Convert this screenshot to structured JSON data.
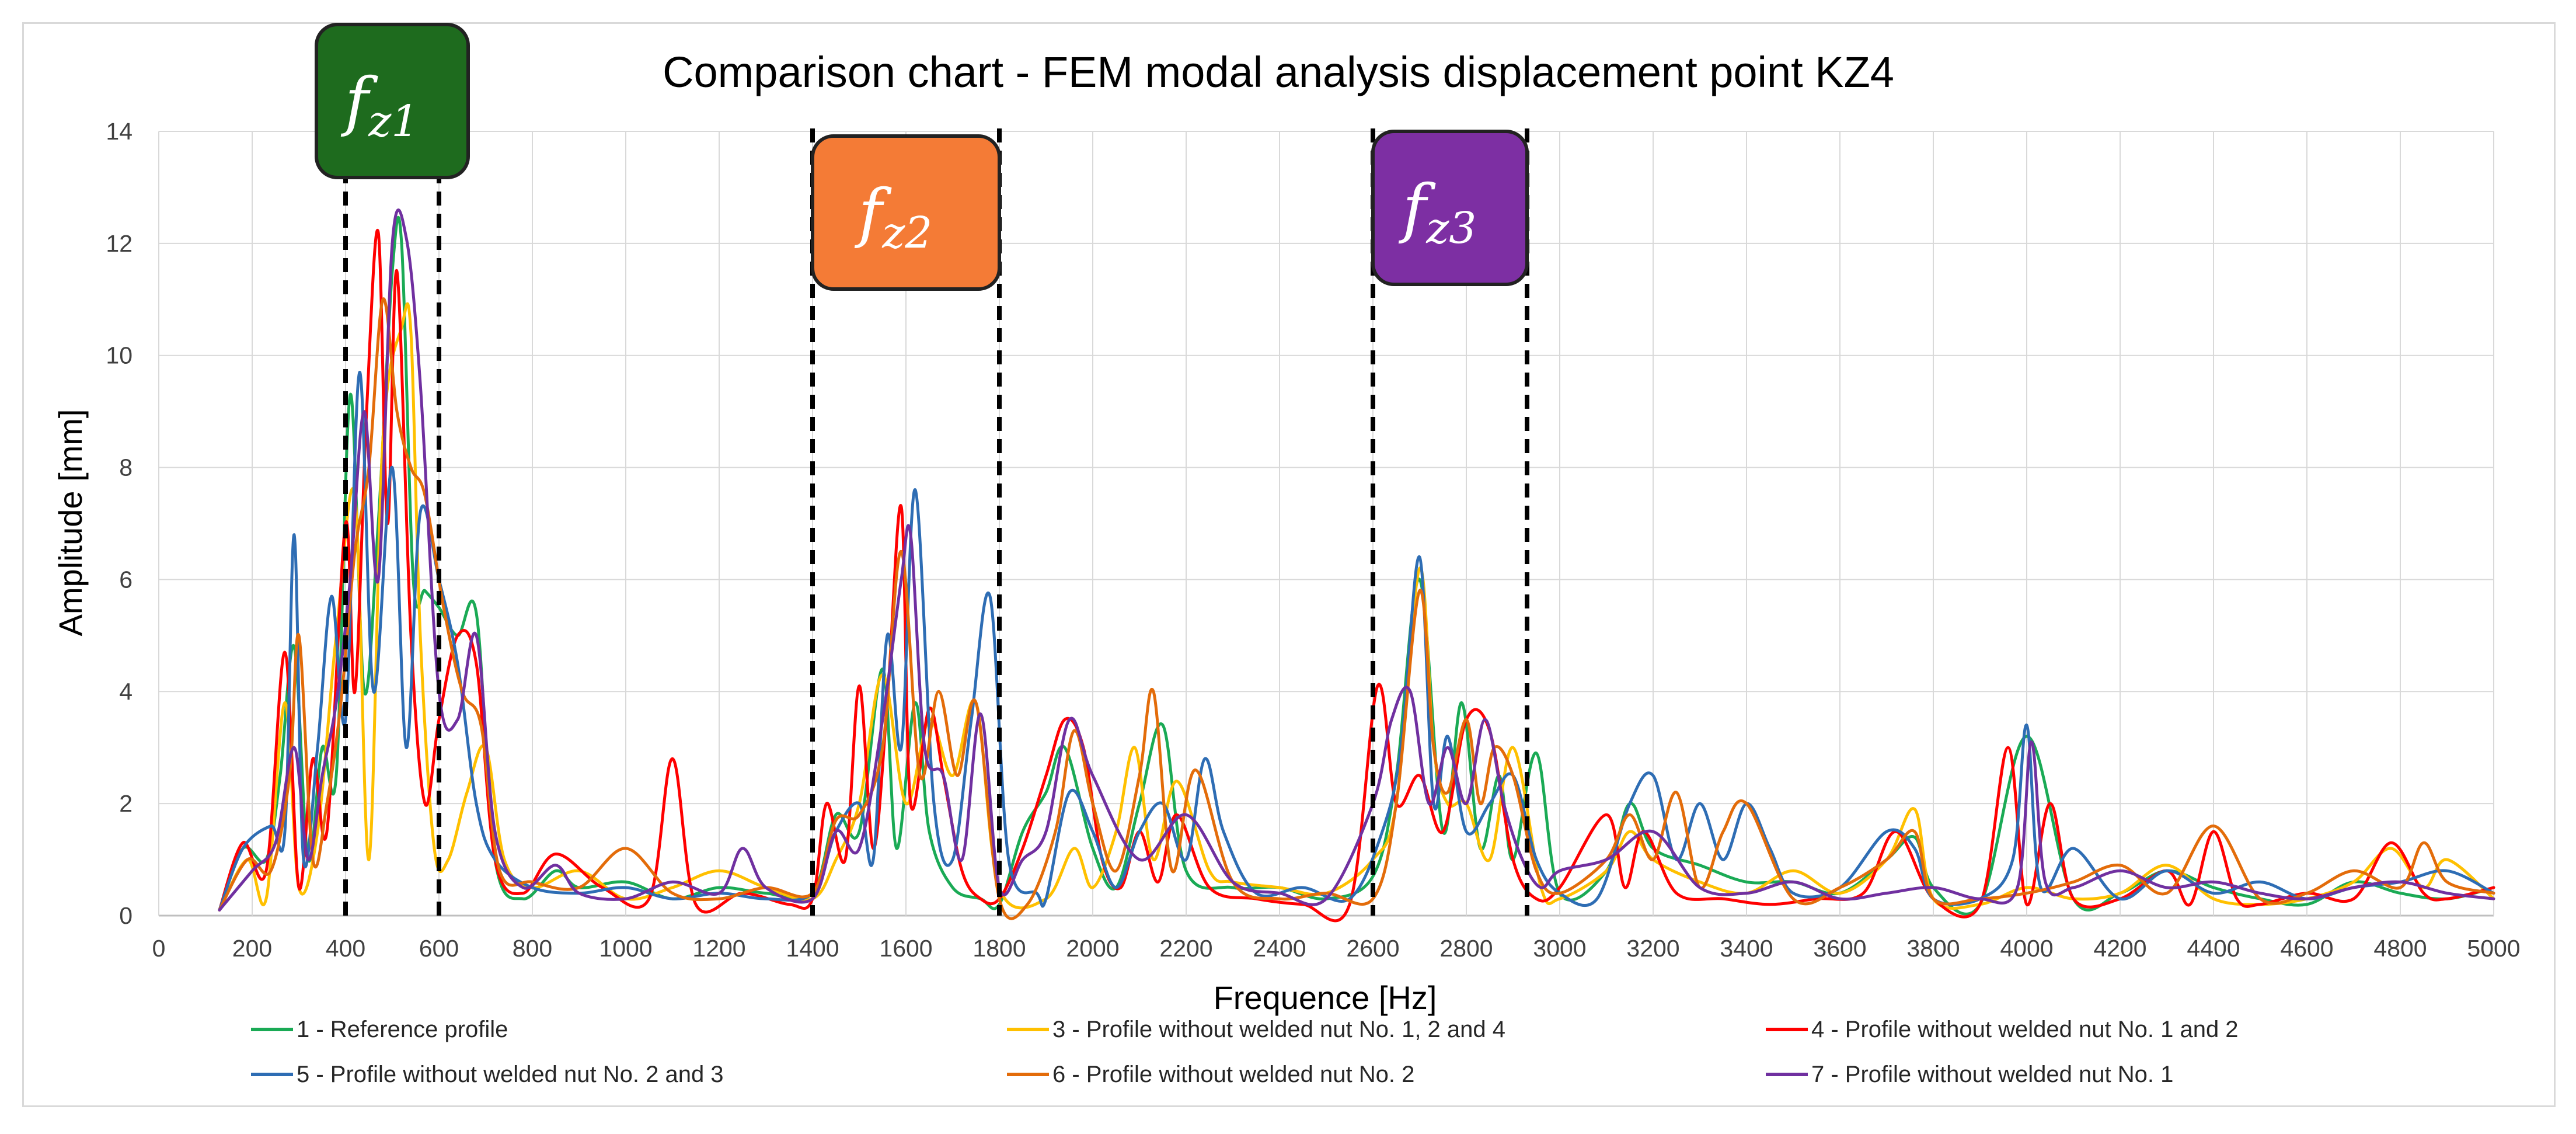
{
  "chart_data": {
    "type": "line",
    "title": "Comparison chart - FEM modal analysis displacement point KZ4",
    "xlabel": "Frequence [Hz]",
    "ylabel": "Amplitude [mm]",
    "xlim": [
      0,
      5000
    ],
    "ylim": [
      0,
      14
    ],
    "xticks": [
      0,
      200,
      400,
      600,
      800,
      1000,
      1200,
      1400,
      1600,
      1800,
      2000,
      2200,
      2400,
      2600,
      2800,
      3000,
      3200,
      3400,
      3600,
      3800,
      4000,
      4200,
      4400,
      4600,
      4800,
      5000
    ],
    "yticks": [
      0,
      2,
      4,
      6,
      8,
      10,
      12,
      14
    ],
    "grid": true,
    "legend_position": "bottom",
    "frequency_bands": [
      {
        "label": "f",
        "subscript": "z1",
        "from": 400,
        "to": 600,
        "color": "#1e6b1e"
      },
      {
        "label": "f",
        "subscript": "z2",
        "from": 1400,
        "to": 1800,
        "color": "#f47b36"
      },
      {
        "label": "f",
        "subscript": "z3",
        "from": 2600,
        "to": 2930,
        "color": "#7d2fa3"
      }
    ],
    "series": [
      {
        "name": "1 - Reference profile",
        "color": "#1aaa55",
        "x": [
          130,
          180,
          230,
          260,
          290,
          320,
          350,
          380,
          410,
          440,
          470,
          500,
          520,
          545,
          570,
          600,
          640,
          680,
          720,
          780,
          850,
          900,
          1000,
          1100,
          1200,
          1300,
          1400,
          1450,
          1500,
          1550,
          1580,
          1620,
          1650,
          1700,
          1760,
          1800,
          1850,
          1900,
          1940,
          2000,
          2050,
          2100,
          2150,
          2200,
          2300,
          2400,
          2500,
          2600,
          2650,
          2700,
          2750,
          2790,
          2830,
          2870,
          2900,
          2950,
          3000,
          3100,
          3150,
          3200,
          3300,
          3400,
          3500,
          3600,
          3700,
          3760,
          3800,
          3900,
          4000,
          4100,
          4200,
          4300,
          4400,
          4500,
          4600,
          4700,
          4800,
          4900,
          5000
        ],
        "y": [
          0.1,
          1.2,
          1.0,
          2.5,
          4.8,
          1.0,
          3.0,
          2.5,
          9.3,
          4.0,
          7.0,
          11.5,
          12.0,
          6.0,
          5.8,
          5.5,
          5.0,
          5.4,
          1.0,
          0.3,
          0.8,
          0.5,
          0.6,
          0.3,
          0.5,
          0.4,
          0.4,
          1.8,
          1.5,
          4.4,
          1.2,
          3.8,
          1.5,
          0.5,
          0.3,
          0.2,
          1.5,
          2.2,
          3.0,
          1.2,
          0.5,
          2.0,
          3.4,
          0.8,
          0.5,
          0.5,
          0.3,
          0.7,
          2.5,
          6.0,
          1.5,
          3.8,
          1.2,
          2.5,
          1.0,
          2.9,
          0.4,
          0.8,
          2.0,
          1.2,
          0.9,
          0.6,
          0.6,
          0.4,
          1.0,
          1.4,
          0.5,
          0.2,
          3.2,
          0.3,
          0.4,
          0.8,
          0.5,
          0.3,
          0.2,
          0.6,
          0.4,
          0.3,
          0.5
        ]
      },
      {
        "name": "3 - Profile without welded nut No. 1, 2 and 4",
        "color": "#ffc000",
        "x": [
          130,
          190,
          230,
          270,
          300,
          340,
          380,
          420,
          450,
          480,
          520,
          540,
          560,
          590,
          620,
          660,
          700,
          740,
          800,
          900,
          1000,
          1100,
          1200,
          1300,
          1400,
          1450,
          1500,
          1550,
          1600,
          1650,
          1700,
          1750,
          1800,
          1900,
          1960,
          2000,
          2050,
          2090,
          2130,
          2180,
          2250,
          2300,
          2400,
          2500,
          2600,
          2650,
          2700,
          2730,
          2760,
          2800,
          2850,
          2900,
          2960,
          3000,
          3100,
          3150,
          3200,
          3300,
          3400,
          3500,
          3600,
          3700,
          3760,
          3800,
          3900,
          4000,
          4100,
          4200,
          4300,
          4400,
          4500,
          4600,
          4700,
          4780,
          4850,
          4900,
          5000
        ],
        "y": [
          0.1,
          1.0,
          0.3,
          3.8,
          0.5,
          1.5,
          5.0,
          7.5,
          1.0,
          8.5,
          10.5,
          10.4,
          5.0,
          1.2,
          1.0,
          2.2,
          3.0,
          1.0,
          0.5,
          0.8,
          0.3,
          0.5,
          0.8,
          0.5,
          0.3,
          1.0,
          2.0,
          4.3,
          2.0,
          3.5,
          2.5,
          3.8,
          0.5,
          0.3,
          1.2,
          0.5,
          1.5,
          3.0,
          1.0,
          2.4,
          0.8,
          0.6,
          0.5,
          0.4,
          1.0,
          2.0,
          6.2,
          3.0,
          2.0,
          2.0,
          1.0,
          3.0,
          0.5,
          0.3,
          0.8,
          1.5,
          1.0,
          0.6,
          0.4,
          0.8,
          0.4,
          1.0,
          1.9,
          0.3,
          0.2,
          0.5,
          0.3,
          0.4,
          0.9,
          0.3,
          0.2,
          0.3,
          0.6,
          1.2,
          0.5,
          1.0,
          0.3
        ]
      },
      {
        "name": "4 -  Profile without welded nut No. 1 and 2",
        "color": "#ff0000",
        "x": [
          130,
          180,
          230,
          270,
          300,
          330,
          360,
          400,
          420,
          445,
          470,
          490,
          510,
          540,
          570,
          600,
          640,
          680,
          720,
          780,
          850,
          950,
          1050,
          1100,
          1150,
          1250,
          1350,
          1400,
          1430,
          1470,
          1500,
          1530,
          1560,
          1590,
          1610,
          1650,
          1680,
          1720,
          1760,
          1800,
          1850,
          1900,
          1940,
          1980,
          2020,
          2060,
          2100,
          2140,
          2180,
          2250,
          2350,
          2450,
          2550,
          2610,
          2650,
          2700,
          2750,
          2800,
          2850,
          2900,
          2950,
          3000,
          3100,
          3140,
          3180,
          3250,
          3350,
          3450,
          3550,
          3650,
          3720,
          3800,
          3900,
          3960,
          4000,
          4050,
          4100,
          4200,
          4300,
          4350,
          4400,
          4450,
          4500,
          4600,
          4700,
          4780,
          4850,
          4900,
          5000
        ],
        "y": [
          0.1,
          1.3,
          0.8,
          4.7,
          0.5,
          2.8,
          1.5,
          7.0,
          4.0,
          9.0,
          12.2,
          7.0,
          11.5,
          5.0,
          2.0,
          3.5,
          5.0,
          4.5,
          1.0,
          0.4,
          1.1,
          0.5,
          0.3,
          2.8,
          0.2,
          0.4,
          0.2,
          0.3,
          2.0,
          1.0,
          4.1,
          1.2,
          3.8,
          7.3,
          2.0,
          3.7,
          2.5,
          0.8,
          0.3,
          0.3,
          1.2,
          2.5,
          3.5,
          3.0,
          1.0,
          0.5,
          1.5,
          0.6,
          1.8,
          0.5,
          0.3,
          0.2,
          0.2,
          4.1,
          2.0,
          2.5,
          1.5,
          3.5,
          3.3,
          1.0,
          0.3,
          0.5,
          1.8,
          0.5,
          1.5,
          0.4,
          0.3,
          0.2,
          0.3,
          0.4,
          1.5,
          0.3,
          0.2,
          3.0,
          0.2,
          2.0,
          0.3,
          0.3,
          0.8,
          0.2,
          1.5,
          0.3,
          0.2,
          0.4,
          0.3,
          1.3,
          0.4,
          0.3,
          0.5
        ]
      },
      {
        "name": "5 -  Profile without welded nut No. 2 and 3",
        "color": "#2e6db4",
        "x": [
          130,
          180,
          240,
          270,
          290,
          310,
          340,
          370,
          400,
          430,
          460,
          500,
          530,
          560,
          600,
          640,
          680,
          720,
          800,
          900,
          1000,
          1100,
          1200,
          1300,
          1400,
          1450,
          1500,
          1530,
          1560,
          1590,
          1620,
          1660,
          1700,
          1740,
          1780,
          1820,
          1880,
          1900,
          1950,
          2000,
          2050,
          2100,
          2150,
          2200,
          2240,
          2280,
          2350,
          2450,
          2550,
          2620,
          2660,
          2700,
          2730,
          2760,
          2800,
          2850,
          2900,
          2950,
          3000,
          3080,
          3150,
          3200,
          3250,
          3300,
          3350,
          3400,
          3450,
          3500,
          3600,
          3700,
          3760,
          3800,
          3900,
          3970,
          4000,
          4030,
          4100,
          4200,
          4300,
          4400,
          4500,
          4600,
          4700,
          4800,
          4900,
          5000
        ],
        "y": [
          0.1,
          1.2,
          1.6,
          1.5,
          6.8,
          1.0,
          3.0,
          5.7,
          3.5,
          9.7,
          4.0,
          8.0,
          3.0,
          7.2,
          6.0,
          4.5,
          2.0,
          1.0,
          0.5,
          0.4,
          0.5,
          0.3,
          0.4,
          0.3,
          0.4,
          1.5,
          2.0,
          1.0,
          5.0,
          3.0,
          7.6,
          2.0,
          1.0,
          3.5,
          5.7,
          1.0,
          0.4,
          0.3,
          2.2,
          1.5,
          0.5,
          1.5,
          2.0,
          1.0,
          2.8,
          1.5,
          0.4,
          0.5,
          0.3,
          1.5,
          3.0,
          6.4,
          2.0,
          3.2,
          1.5,
          2.0,
          2.5,
          1.0,
          0.4,
          0.3,
          2.0,
          2.5,
          1.0,
          2.0,
          1.0,
          2.0,
          1.2,
          0.4,
          0.5,
          1.5,
          1.2,
          0.3,
          0.3,
          1.0,
          3.4,
          0.5,
          1.2,
          0.3,
          0.8,
          0.4,
          0.6,
          0.3,
          0.5,
          0.6,
          0.8,
          0.4
        ]
      },
      {
        "name": "6 -  Profile without welded nut No. 2",
        "color": "#e36c0a",
        "x": [
          130,
          190,
          240,
          280,
          300,
          330,
          360,
          390,
          420,
          450,
          480,
          510,
          540,
          570,
          610,
          650,
          690,
          730,
          800,
          900,
          1000,
          1100,
          1200,
          1300,
          1400,
          1450,
          1500,
          1550,
          1590,
          1630,
          1670,
          1710,
          1750,
          1800,
          1860,
          1920,
          1960,
          2000,
          2050,
          2100,
          2130,
          2170,
          2220,
          2300,
          2400,
          2500,
          2600,
          2650,
          2700,
          2730,
          2760,
          2800,
          2830,
          2860,
          2900,
          2950,
          3000,
          3100,
          3150,
          3200,
          3250,
          3300,
          3350,
          3400,
          3500,
          3600,
          3700,
          3760,
          3800,
          3900,
          4000,
          4100,
          4200,
          4300,
          4400,
          4500,
          4600,
          4700,
          4800,
          4850,
          4900,
          5000
        ],
        "y": [
          0.1,
          1.0,
          0.8,
          2.5,
          5.0,
          1.0,
          2.0,
          3.8,
          6.5,
          8.0,
          11.0,
          9.0,
          8.0,
          7.5,
          5.5,
          4.0,
          3.4,
          0.8,
          0.6,
          0.5,
          1.2,
          0.4,
          0.3,
          0.5,
          0.4,
          1.7,
          1.8,
          3.0,
          6.5,
          2.5,
          4.0,
          2.5,
          3.8,
          0.3,
          0.2,
          1.5,
          3.3,
          2.0,
          0.8,
          2.5,
          4.0,
          0.8,
          2.6,
          0.6,
          0.3,
          0.4,
          0.3,
          2.0,
          5.8,
          3.0,
          2.2,
          3.5,
          2.0,
          3.0,
          2.5,
          0.8,
          0.4,
          1.0,
          1.8,
          1.0,
          2.2,
          0.5,
          1.5,
          2.0,
          0.3,
          0.5,
          1.0,
          1.5,
          0.3,
          0.3,
          0.4,
          0.6,
          0.9,
          0.4,
          1.6,
          0.3,
          0.4,
          0.8,
          0.5,
          1.3,
          0.6,
          0.4
        ]
      },
      {
        "name": "7 -  Profile without welded nut No. 1",
        "color": "#7030a0",
        "x": [
          130,
          200,
          250,
          290,
          320,
          350,
          380,
          410,
          440,
          470,
          500,
          530,
          560,
          600,
          640,
          680,
          720,
          780,
          850,
          900,
          1000,
          1100,
          1200,
          1250,
          1300,
          1400,
          1450,
          1500,
          1550,
          1590,
          1610,
          1640,
          1680,
          1720,
          1760,
          1800,
          1850,
          1900,
          1950,
          2000,
          2100,
          2200,
          2300,
          2400,
          2500,
          2600,
          2640,
          2680,
          2720,
          2760,
          2800,
          2840,
          2880,
          2920,
          2960,
          3000,
          3100,
          3200,
          3300,
          3400,
          3500,
          3600,
          3700,
          3800,
          3900,
          3980,
          4010,
          4040,
          4100,
          4200,
          4300,
          4400,
          4500,
          4600,
          4700,
          4800,
          4900,
          5000
        ],
        "y": [
          0.1,
          0.8,
          1.3,
          3.0,
          1.0,
          2.5,
          3.8,
          6.0,
          9.0,
          6.0,
          12.0,
          12.1,
          9.5,
          4.0,
          3.5,
          5.0,
          1.5,
          0.5,
          0.9,
          0.4,
          0.3,
          0.6,
          0.4,
          1.2,
          0.5,
          0.3,
          1.5,
          1.2,
          3.5,
          6.0,
          6.8,
          3.0,
          2.5,
          1.0,
          3.6,
          0.5,
          1.0,
          1.5,
          3.5,
          2.5,
          1.0,
          1.8,
          0.6,
          0.4,
          0.3,
          2.0,
          3.5,
          4.0,
          2.0,
          3.0,
          2.0,
          3.5,
          2.0,
          1.0,
          0.5,
          0.8,
          1.0,
          1.5,
          0.5,
          0.4,
          0.6,
          0.3,
          0.4,
          0.5,
          0.3,
          0.5,
          3.1,
          0.6,
          0.5,
          0.8,
          0.5,
          0.6,
          0.4,
          0.3,
          0.5,
          0.6,
          0.4,
          0.3
        ]
      }
    ]
  }
}
